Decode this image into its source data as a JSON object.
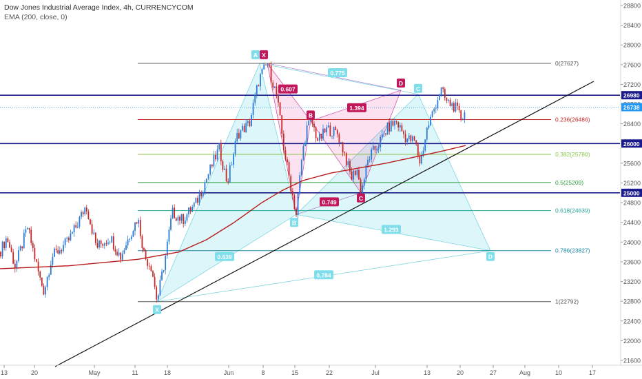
{
  "legend": {
    "title": "Dow Jones Industrial Average Index, 4h, CURRENCYCOM",
    "indicator": "EMA (200, close, 0)"
  },
  "chart_data": {
    "type": "candlestick",
    "symbol": "Dow Jones Industrial Average Index",
    "timeframe": "4h",
    "source": "CURRENCYCOM",
    "ylim": [
      21500,
      28950
    ],
    "y_ticks": [
      21600,
      22000,
      22400,
      22800,
      23200,
      23600,
      24000,
      24400,
      24800,
      25200,
      25600,
      26000,
      26400,
      26800,
      27200,
      27600,
      28000,
      28400,
      28800
    ],
    "x_ticks": [
      "13",
      "20",
      "May",
      "11",
      "18",
      "Jun",
      "8",
      "15",
      "22",
      "Jul",
      "13",
      "20",
      "27",
      "Aug",
      "10",
      "17"
    ],
    "price_labels": [
      {
        "value": 26980,
        "label": "26980",
        "color": "#1a1a8c"
      },
      {
        "value": 26738,
        "label": "26738",
        "color": "#2196f3"
      },
      {
        "value": 26000,
        "label": "26000",
        "color": "#1a1a8c"
      },
      {
        "value": 25000,
        "label": "25000",
        "color": "#1a1a8c"
      }
    ],
    "horizontal_levels": [
      26980,
      26000,
      25000
    ],
    "fib_levels": [
      {
        "ratio": "0",
        "value": 27627,
        "label": "0(27627)",
        "color": "#555555"
      },
      {
        "ratio": "0.236",
        "value": 26486,
        "label": "0.236(26486)",
        "color": "#c62828"
      },
      {
        "ratio": "0.382",
        "value": 25780,
        "label": "0.382(25780)",
        "color": "#8bc34a"
      },
      {
        "ratio": "0.5",
        "value": 25209,
        "label": "0.5(25209)",
        "color": "#2e9e3e"
      },
      {
        "ratio": "0.618",
        "value": 24639,
        "label": "0.618(24639)",
        "color": "#26a69a"
      },
      {
        "ratio": "0.786",
        "value": 23827,
        "label": "0.786(23827)",
        "color": "#1e88a8"
      },
      {
        "ratio": "1",
        "value": 22792,
        "label": "1(22792)",
        "color": "#555555"
      }
    ],
    "pattern_cyan": {
      "points": {
        "X": 22792,
        "A": 27627,
        "B": 24560,
        "C": 27000,
        "D": 23827
      },
      "ratios": [
        "0.639",
        "1.293",
        "0.784"
      ]
    },
    "pattern_pink": {
      "points": {
        "X": 27627,
        "B": 26460,
        "D": 27080,
        "C": 25000
      },
      "ratios": [
        "0.607",
        "0.775",
        "1.394",
        "0.749"
      ]
    },
    "series": [
      {
        "name": "EMA (200, close, 0)",
        "type": "line",
        "color": "#b71c1c"
      }
    ],
    "trendline": {
      "from": {
        "x": "10",
        "y": 21480
      },
      "to": {
        "x": "10 Aug",
        "y": 27200
      }
    }
  }
}
